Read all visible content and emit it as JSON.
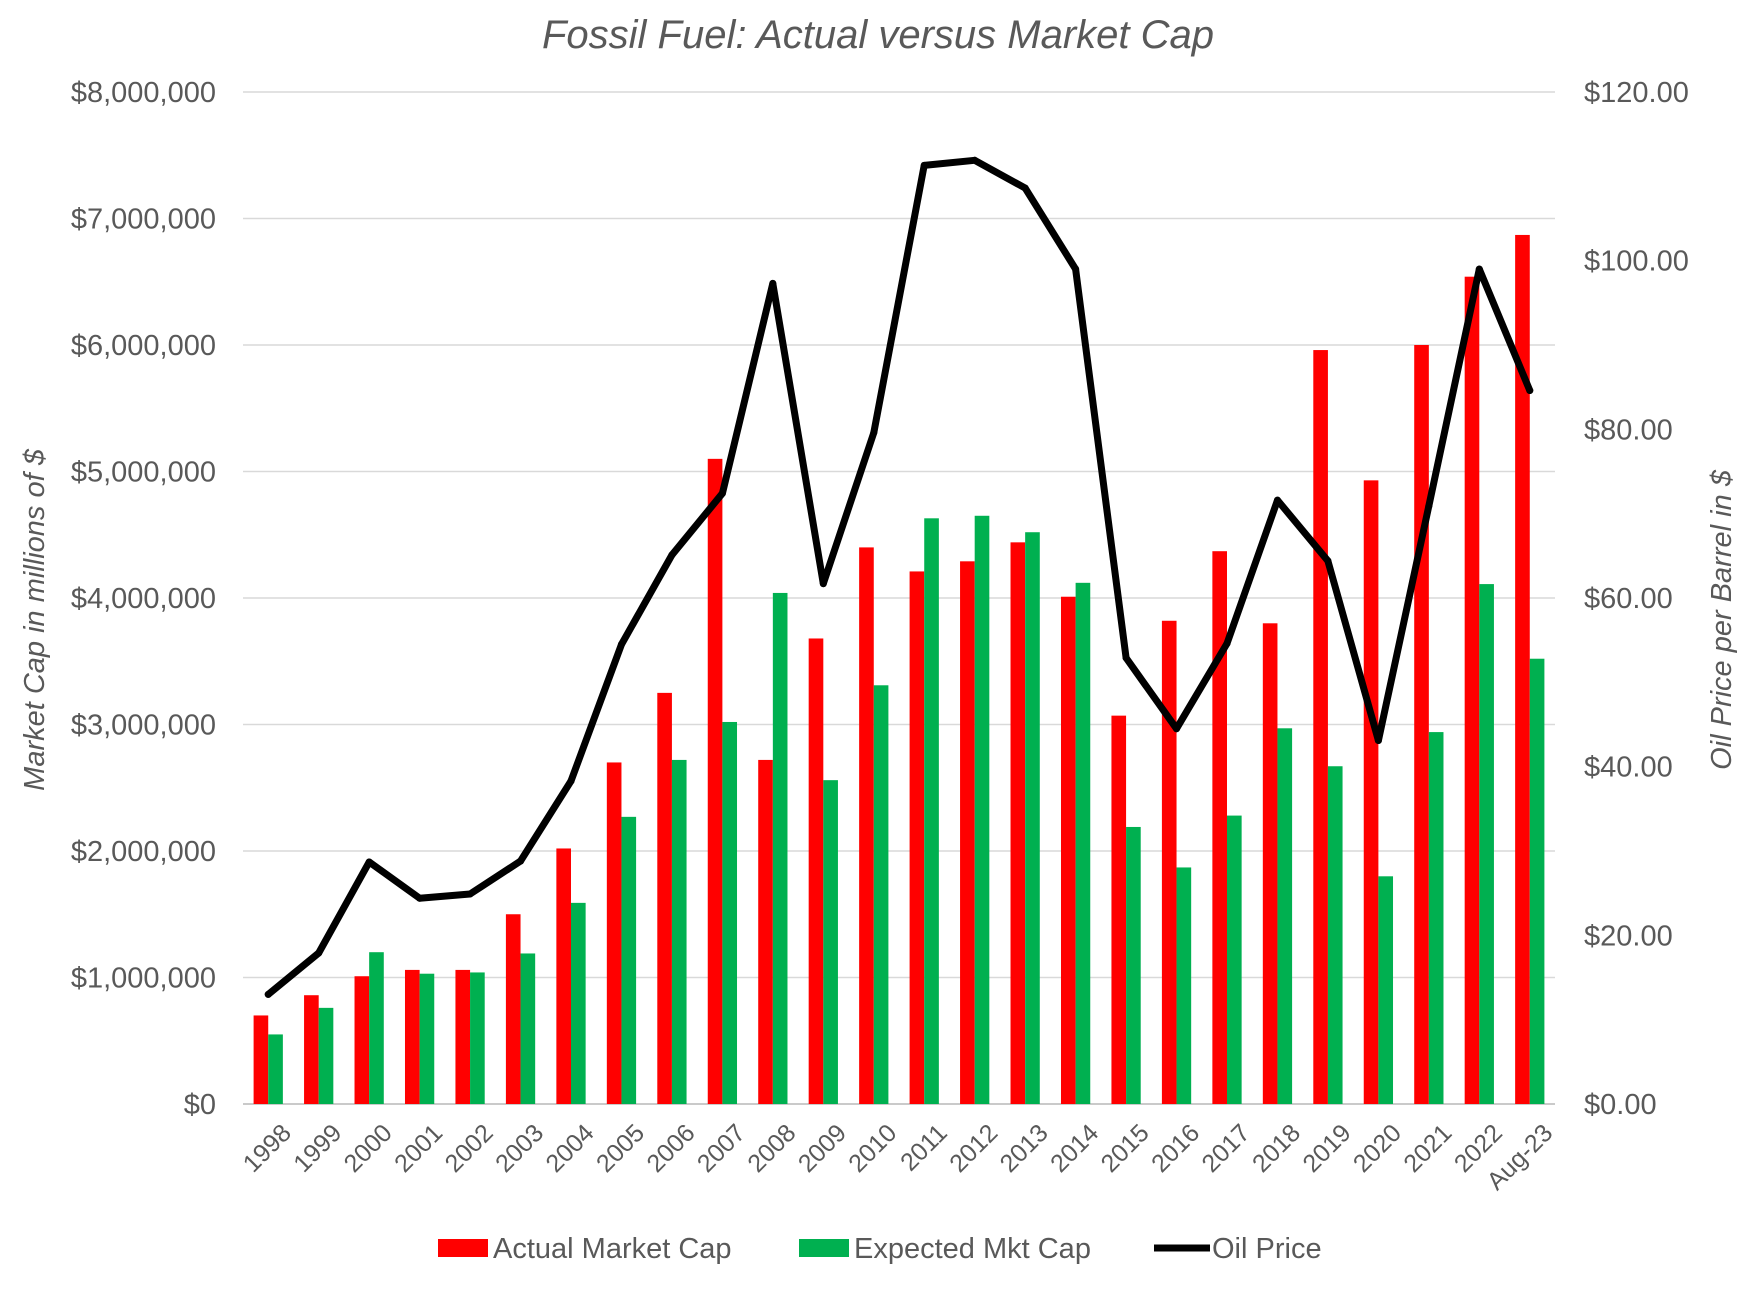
{
  "chart_data": {
    "type": "bar",
    "title": "Fossil Fuel: Actual versus Market Cap",
    "ylabel": "Market Cap in millions of $",
    "y2label": "Oil Price per Barrel in $",
    "categories": [
      "1998",
      "1999",
      "2000",
      "2001",
      "2002",
      "2003",
      "2004",
      "2005",
      "2006",
      "2007",
      "2008",
      "2009",
      "2010",
      "2011",
      "2012",
      "2013",
      "2014",
      "2015",
      "2016",
      "2017",
      "2018",
      "2019",
      "2020",
      "2021",
      "2022",
      "Aug-23"
    ],
    "ylim": [
      0,
      8000000
    ],
    "y2lim": [
      0,
      120
    ],
    "y_ticks": [
      "$0",
      "$1,000,000",
      "$2,000,000",
      "$3,000,000",
      "$4,000,000",
      "$5,000,000",
      "$6,000,000",
      "$7,000,000",
      "$8,000,000"
    ],
    "y2_ticks": [
      "$0.00",
      "$20.00",
      "$40.00",
      "$60.00",
      "$80.00",
      "$100.00",
      "$120.00"
    ],
    "series": [
      {
        "name": "Actual Market Cap",
        "type": "bar",
        "axis": "left",
        "color": "#ff0000",
        "values": [
          700000,
          860000,
          1010000,
          1060000,
          1060000,
          1500000,
          2020000,
          2700000,
          3250000,
          5100000,
          2720000,
          3680000,
          4400000,
          4210000,
          4290000,
          4440000,
          4010000,
          3070000,
          3820000,
          4370000,
          3800000,
          5960000,
          4930000,
          6000000,
          6540000,
          6870000
        ]
      },
      {
        "name": "Expected Mkt Cap",
        "type": "bar",
        "axis": "left",
        "color": "#00b050",
        "values": [
          550000,
          760000,
          1200000,
          1030000,
          1040000,
          1190000,
          1590000,
          2270000,
          2720000,
          3020000,
          4040000,
          2560000,
          3310000,
          4630000,
          4650000,
          4520000,
          4120000,
          2190000,
          1870000,
          2280000,
          2970000,
          2670000,
          1800000,
          2940000,
          4110000,
          3520000
        ]
      },
      {
        "name": "Oil Price",
        "type": "line",
        "axis": "right",
        "color": "#000000",
        "values": [
          13.0,
          17.9,
          28.7,
          24.4,
          24.9,
          28.8,
          38.3,
          54.5,
          65.1,
          72.4,
          97.3,
          61.7,
          79.6,
          111.3,
          111.9,
          108.6,
          99.0,
          52.9,
          44.5,
          54.6,
          71.6,
          64.4,
          43.1,
          70.9,
          99.0,
          84.6
        ]
      }
    ],
    "legend": "bottom",
    "grid": true
  }
}
